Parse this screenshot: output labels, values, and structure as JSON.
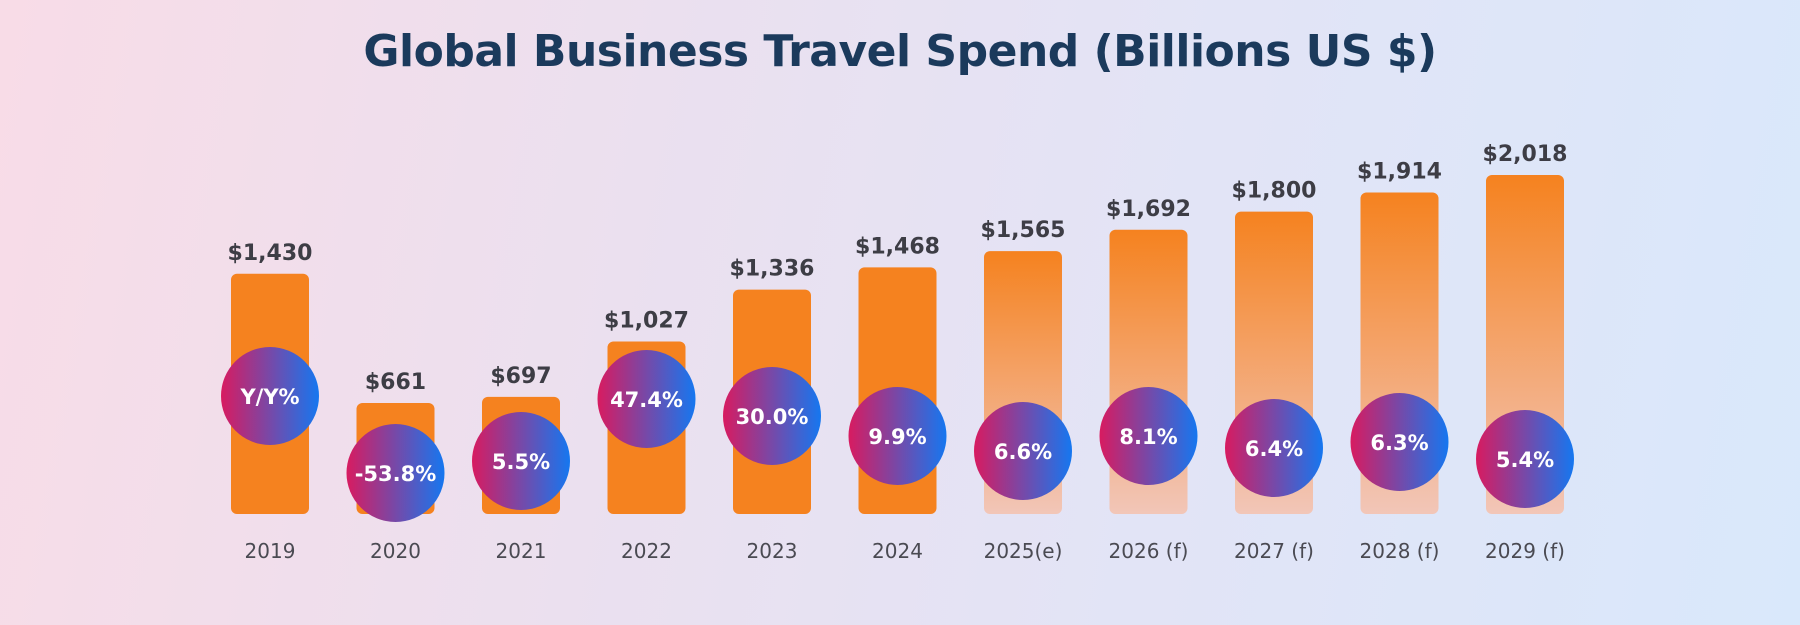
{
  "chart_data": {
    "type": "bar",
    "title": "Global Business Travel Spend (Billions US $)",
    "xlabel": "",
    "ylabel": "",
    "ylim": [
      0,
      2018
    ],
    "grid": false,
    "categories": [
      "2019",
      "2020",
      "2021",
      "2022",
      "2023",
      "2024",
      "2025(e)",
      "2026 (f)",
      "2027 (f)",
      "2028 (f)",
      "2029 (f)"
    ],
    "values": [
      1430,
      661,
      697,
      1027,
      1336,
      1468,
      1565,
      1692,
      1800,
      1914,
      2018
    ],
    "value_labels": [
      "$1,430",
      "$661",
      "$697",
      "$1,027",
      "$1,336",
      "$1,468",
      "$1,565",
      "$1,692",
      "$1,800",
      "$1,914",
      "$2,018"
    ],
    "yoy_labels": [
      "Y/Y%",
      "-53.8%",
      "5.5%",
      "47.4%",
      "30.0%",
      "9.9%",
      "6.6%",
      "8.1%",
      "6.4%",
      "6.3%",
      "5.4%"
    ],
    "projected": [
      false,
      false,
      false,
      false,
      false,
      false,
      true,
      true,
      true,
      true,
      true
    ],
    "colors": {
      "bar": "#f5821f",
      "bar_fade": "#f2c6b8",
      "badge_start": "#d81b60",
      "badge_end": "#1577f0",
      "title": "#1b3a5c"
    }
  }
}
